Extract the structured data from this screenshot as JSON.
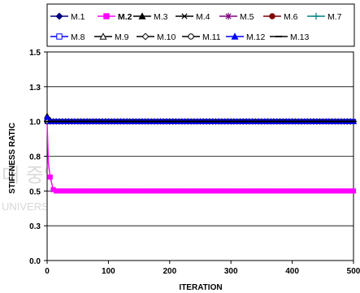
{
  "chart_data": {
    "type": "line",
    "title": "",
    "xlabel": "ITERATION",
    "ylabel": "STIFFNESS RATIC",
    "xlim": [
      0,
      500
    ],
    "ylim": [
      0,
      1.5
    ],
    "x_ticks": [
      "0",
      "100",
      "200",
      "300",
      "400",
      "500"
    ],
    "y_ticks": [
      "0.0",
      "0.3",
      "0.5",
      "0.8",
      "1.0",
      "1.3",
      "1.5"
    ],
    "y_tick_values": [
      0,
      0.25,
      0.5,
      0.75,
      1.0,
      1.25,
      1.5
    ],
    "grid": "horizontal",
    "legend_position": "top",
    "series": [
      {
        "name": "M.1",
        "color": "#000080",
        "marker": "diamond-filled",
        "x": [
          0,
          10,
          20,
          500
        ],
        "y": [
          1.0,
          1.0,
          1.0,
          1.0
        ]
      },
      {
        "name": "M.2",
        "color": "#ff00ff",
        "marker": "square-filled",
        "x": [
          0,
          2,
          5,
          10,
          15,
          20,
          500
        ],
        "y": [
          1.0,
          0.7,
          0.6,
          0.51,
          0.5,
          0.5,
          0.5
        ]
      },
      {
        "name": "M.3",
        "color": "#000000",
        "marker": "triangle-filled",
        "x": [
          0,
          5,
          10,
          500
        ],
        "y": [
          1.04,
          1.01,
          1.0,
          1.0
        ]
      },
      {
        "name": "M.4",
        "color": "#000000",
        "marker": "x",
        "x": [
          0,
          500
        ],
        "y": [
          1.0,
          1.0
        ]
      },
      {
        "name": "M.5",
        "color": "#800080",
        "marker": "asterisk",
        "x": [
          0,
          500
        ],
        "y": [
          1.0,
          1.0
        ]
      },
      {
        "name": "M.6",
        "color": "#800000",
        "marker": "circle-filled",
        "x": [
          0,
          500
        ],
        "y": [
          1.0,
          1.0
        ]
      },
      {
        "name": "M.7",
        "color": "#008080",
        "marker": "plus",
        "x": [
          0,
          500
        ],
        "y": [
          1.0,
          1.0
        ]
      },
      {
        "name": "M.8",
        "color": "#0000ff",
        "marker": "square-open",
        "x": [
          0,
          500
        ],
        "y": [
          1.0,
          1.0
        ]
      },
      {
        "name": "M.9",
        "color": "#000000",
        "marker": "triangle-open",
        "x": [
          0,
          5,
          500
        ],
        "y": [
          1.02,
          1.0,
          1.0
        ]
      },
      {
        "name": "M.10",
        "color": "#000000",
        "marker": "diamond-open",
        "x": [
          0,
          500
        ],
        "y": [
          1.0,
          1.0
        ]
      },
      {
        "name": "M.11",
        "color": "#000000",
        "marker": "circle-open",
        "x": [
          0,
          500
        ],
        "y": [
          1.0,
          1.0
        ]
      },
      {
        "name": "M.12",
        "color": "#0000ff",
        "marker": "triangle-filled",
        "x": [
          0,
          5,
          500
        ],
        "y": [
          1.03,
          1.0,
          1.0
        ]
      },
      {
        "name": "M.13",
        "color": "#000000",
        "marker": "dash",
        "x": [
          0,
          500
        ],
        "y": [
          1.0,
          1.0
        ]
      }
    ]
  }
}
